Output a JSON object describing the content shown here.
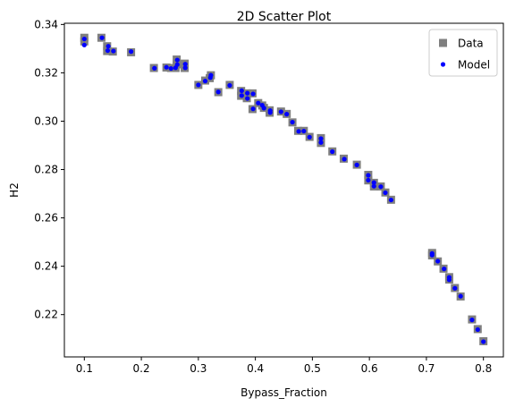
{
  "chart_data": {
    "type": "scatter",
    "title": "2D Scatter Plot",
    "xlabel": "Bypass_Fraction",
    "ylabel": "H2",
    "xlim": [
      0.065,
      0.835
    ],
    "ylim": [
      0.2025,
      0.3405
    ],
    "xticks": [
      0.1,
      0.2,
      0.3,
      0.4,
      0.5,
      0.6,
      0.7,
      0.8
    ],
    "xtick_labels": [
      "0.1",
      "0.2",
      "0.3",
      "0.4",
      "0.5",
      "0.6",
      "0.7",
      "0.8"
    ],
    "yticks": [
      0.22,
      0.24,
      0.26,
      0.28,
      0.3,
      0.32,
      0.34
    ],
    "ytick_labels": [
      "0.22",
      "0.24",
      "0.26",
      "0.28",
      "0.30",
      "0.32",
      "0.34"
    ],
    "grid": false,
    "legend": "top-right",
    "colors": {
      "data": "#7f7f7f",
      "model": "#0000ff"
    },
    "series": [
      {
        "name": "Data",
        "marker": "square",
        "points": [
          [
            0.1,
            0.3345
          ],
          [
            0.1,
            0.333
          ],
          [
            0.13,
            0.3345
          ],
          [
            0.14,
            0.331
          ],
          [
            0.14,
            0.329
          ],
          [
            0.15,
            0.3288
          ],
          [
            0.182,
            0.3285
          ],
          [
            0.222,
            0.322
          ],
          [
            0.244,
            0.3222
          ],
          [
            0.252,
            0.322
          ],
          [
            0.26,
            0.322
          ],
          [
            0.262,
            0.3235
          ],
          [
            0.262,
            0.3255
          ],
          [
            0.276,
            0.3238
          ],
          [
            0.276,
            0.322
          ],
          [
            0.3,
            0.315
          ],
          [
            0.312,
            0.3168
          ],
          [
            0.32,
            0.3178
          ],
          [
            0.322,
            0.319
          ],
          [
            0.335,
            0.312
          ],
          [
            0.355,
            0.315
          ],
          [
            0.375,
            0.3125
          ],
          [
            0.375,
            0.3105
          ],
          [
            0.385,
            0.3115
          ],
          [
            0.385,
            0.3095
          ],
          [
            0.395,
            0.3115
          ],
          [
            0.395,
            0.305
          ],
          [
            0.405,
            0.3075
          ],
          [
            0.412,
            0.3065
          ],
          [
            0.415,
            0.3055
          ],
          [
            0.425,
            0.3045
          ],
          [
            0.425,
            0.3035
          ],
          [
            0.445,
            0.304
          ],
          [
            0.455,
            0.303
          ],
          [
            0.465,
            0.2995
          ],
          [
            0.475,
            0.296
          ],
          [
            0.485,
            0.296
          ],
          [
            0.495,
            0.2935
          ],
          [
            0.515,
            0.293
          ],
          [
            0.515,
            0.291
          ],
          [
            0.535,
            0.2875
          ],
          [
            0.555,
            0.2845
          ],
          [
            0.578,
            0.282
          ],
          [
            0.598,
            0.2778
          ],
          [
            0.598,
            0.2755
          ],
          [
            0.608,
            0.2745
          ],
          [
            0.608,
            0.273
          ],
          [
            0.62,
            0.273
          ],
          [
            0.628,
            0.2705
          ],
          [
            0.638,
            0.2675
          ],
          [
            0.71,
            0.2455
          ],
          [
            0.71,
            0.2445
          ],
          [
            0.72,
            0.242
          ],
          [
            0.73,
            0.239
          ],
          [
            0.74,
            0.2355
          ],
          [
            0.74,
            0.2345
          ],
          [
            0.75,
            0.231
          ],
          [
            0.76,
            0.2275
          ],
          [
            0.78,
            0.218
          ],
          [
            0.79,
            0.214
          ],
          [
            0.8,
            0.209
          ]
        ]
      },
      {
        "name": "Model",
        "marker": "dot",
        "points": [
          [
            0.1,
            0.334
          ],
          [
            0.1,
            0.3315
          ],
          [
            0.131,
            0.3345
          ],
          [
            0.142,
            0.331
          ],
          [
            0.141,
            0.3292
          ],
          [
            0.151,
            0.329
          ],
          [
            0.182,
            0.3288
          ],
          [
            0.223,
            0.3219
          ],
          [
            0.244,
            0.3223
          ],
          [
            0.252,
            0.3218
          ],
          [
            0.26,
            0.3221
          ],
          [
            0.263,
            0.3234
          ],
          [
            0.263,
            0.3253
          ],
          [
            0.277,
            0.3236
          ],
          [
            0.277,
            0.3221
          ],
          [
            0.3,
            0.315
          ],
          [
            0.312,
            0.3166
          ],
          [
            0.321,
            0.318
          ],
          [
            0.322,
            0.319
          ],
          [
            0.335,
            0.3121
          ],
          [
            0.355,
            0.3148
          ],
          [
            0.376,
            0.3126
          ],
          [
            0.376,
            0.3106
          ],
          [
            0.386,
            0.3116
          ],
          [
            0.386,
            0.3094
          ],
          [
            0.396,
            0.3113
          ],
          [
            0.396,
            0.3051
          ],
          [
            0.405,
            0.3075
          ],
          [
            0.412,
            0.3066
          ],
          [
            0.415,
            0.3054
          ],
          [
            0.426,
            0.3044
          ],
          [
            0.426,
            0.3036
          ],
          [
            0.445,
            0.3039
          ],
          [
            0.455,
            0.3029
          ],
          [
            0.465,
            0.2996
          ],
          [
            0.476,
            0.2958
          ],
          [
            0.485,
            0.2959
          ],
          [
            0.495,
            0.2934
          ],
          [
            0.515,
            0.2928
          ],
          [
            0.515,
            0.2912
          ],
          [
            0.535,
            0.2874
          ],
          [
            0.556,
            0.2843
          ],
          [
            0.578,
            0.2819
          ],
          [
            0.598,
            0.2776
          ],
          [
            0.598,
            0.2756
          ],
          [
            0.608,
            0.2746
          ],
          [
            0.608,
            0.2731
          ],
          [
            0.62,
            0.2729
          ],
          [
            0.628,
            0.2704
          ],
          [
            0.638,
            0.2674
          ],
          [
            0.71,
            0.2453
          ],
          [
            0.71,
            0.2446
          ],
          [
            0.72,
            0.2421
          ],
          [
            0.731,
            0.2389
          ],
          [
            0.74,
            0.2354
          ],
          [
            0.74,
            0.2344
          ],
          [
            0.75,
            0.2309
          ],
          [
            0.76,
            0.2276
          ],
          [
            0.78,
            0.2178
          ],
          [
            0.79,
            0.2138
          ],
          [
            0.8,
            0.2088
          ]
        ]
      }
    ]
  }
}
